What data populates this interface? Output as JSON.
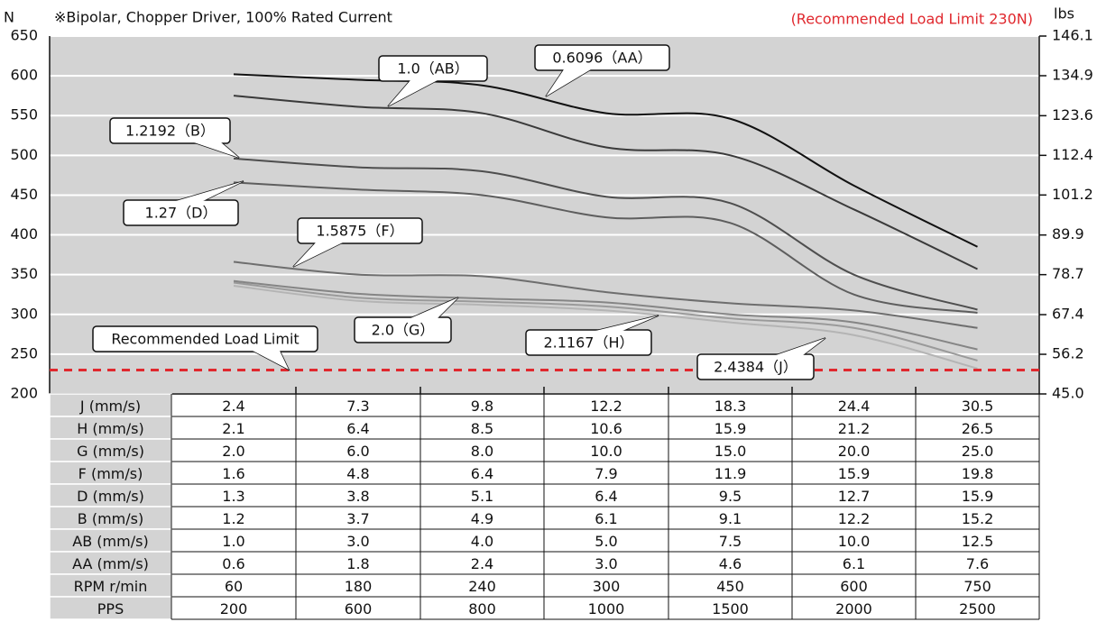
{
  "chart_data": {
    "type": "line",
    "title": "※Bipolar, Chopper Driver, 100% Rated Current",
    "subtitle": "(Recommended Load Limit 230N)",
    "ylabel": "N",
    "y2label": "lbs",
    "categories": [
      null,
      null,
      null,
      null,
      null,
      null,
      null
    ],
    "ylim": [
      200,
      650
    ],
    "yticks": [
      200,
      250,
      300,
      350,
      400,
      450,
      500,
      550,
      600,
      650
    ],
    "y2lim": [
      45.0,
      146.1
    ],
    "y2ticks": [
      {
        "value": 45.0,
        "label": "45.0"
      },
      56.2,
      67.4,
      78.7,
      89.9,
      101.2,
      112.4,
      123.6,
      134.9,
      146.1
    ],
    "grid": true,
    "background": "#d3d3d3",
    "limit": 230,
    "limit_label": "Recommended Load Limit",
    "limit_color": "#e0282e",
    "series": [
      {
        "name": "0.6096（AA）",
        "color": "#111111",
        "values": [
          602,
          595,
          588,
          553,
          546,
          462,
          385
        ]
      },
      {
        "name": "1.0（AB）",
        "color": "#3a3a3a",
        "values": [
          575,
          561,
          553,
          510,
          500,
          432,
          357
        ]
      },
      {
        "name": "1.2192（B）",
        "color": "#4e4e4e",
        "values": [
          496,
          485,
          480,
          448,
          440,
          350,
          306
        ]
      },
      {
        "name": "1.27（D）",
        "color": "#5e5e5e",
        "values": [
          466,
          457,
          450,
          422,
          415,
          325,
          302
        ]
      },
      {
        "name": "1.5875（F）",
        "color": "#6e6e6e",
        "values": [
          366,
          350,
          348,
          328,
          314,
          305,
          283
        ]
      },
      {
        "name": "2.0（G）",
        "color": "#858585",
        "values": [
          342,
          326,
          320,
          315,
          300,
          290,
          256
        ]
      },
      {
        "name": "2.1167（H）",
        "color": "#9a9a9a",
        "values": [
          340,
          321,
          316,
          310,
          295,
          283,
          242
        ]
      },
      {
        "name": "2.4384（J）",
        "color": "#b4b4b4",
        "values": [
          336,
          317,
          312,
          305,
          290,
          274,
          232
        ]
      }
    ]
  },
  "table": {
    "rows": [
      [
        "J (mm/s)",
        "2.4",
        "7.3",
        "9.8",
        "12.2",
        "18.3",
        "24.4",
        "30.5"
      ],
      [
        "H (mm/s)",
        "2.1",
        "6.4",
        "8.5",
        "10.6",
        "15.9",
        "21.2",
        "26.5"
      ],
      [
        "G (mm/s)",
        "2.0",
        "6.0",
        "8.0",
        "10.0",
        "15.0",
        "20.0",
        "25.0"
      ],
      [
        "F (mm/s)",
        "1.6",
        "4.8",
        "6.4",
        "7.9",
        "11.9",
        "15.9",
        "19.8"
      ],
      [
        "D (mm/s)",
        "1.3",
        "3.8",
        "5.1",
        "6.4",
        "9.5",
        "12.7",
        "15.9"
      ],
      [
        "B (mm/s)",
        "1.2",
        "3.7",
        "4.9",
        "6.1",
        "9.1",
        "12.2",
        "15.2"
      ],
      [
        "AB (mm/s)",
        "1.0",
        "3.0",
        "4.0",
        "5.0",
        "7.5",
        "10.0",
        "12.5"
      ],
      [
        "AA (mm/s)",
        "0.6",
        "1.8",
        "2.4",
        "3.0",
        "4.6",
        "6.1",
        "7.6"
      ],
      [
        "RPM r/min",
        "60",
        "180",
        "240",
        "300",
        "450",
        "600",
        "750"
      ],
      [
        "PPS",
        "200",
        "600",
        "800",
        "1000",
        "1500",
        "2000",
        "2500"
      ]
    ]
  }
}
